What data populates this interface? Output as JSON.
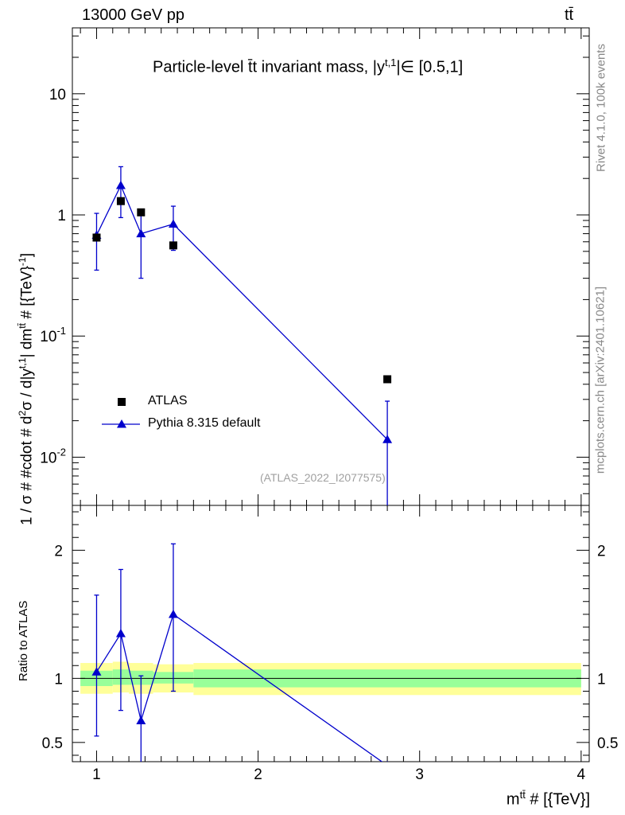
{
  "header": {
    "energy_label": "13000 GeV pp",
    "process_label": "tt̄"
  },
  "side_labels": {
    "rivet": "Rivet 4.1.0,  100k events",
    "mcplots": "mcplots.cern.ch [arXiv:2401.10621]"
  },
  "reference_label": "(ATLAS_2022_I2077575)",
  "colors": {
    "mc": "#0000cc",
    "data": "#000000",
    "band_inner": "#99ff99",
    "band_outer": "#ffff99",
    "side_text": "#888888"
  },
  "chart_data": [
    {
      "type": "scatter",
      "panel": "main",
      "title": "Particle-level t̄t invariant mass, |y^{t,1}| ∈ [0.5,1]",
      "title_parts": {
        "pre": "Particle-level t̄t invariant mass, |y",
        "sup": "t,1",
        "post": "|∈ [0.5,1]"
      },
      "ylabel": "1 / σ # #cdot # d²σ / d|y^{t,1}| dm^{tt̄} # [{TeV}^{-1}]",
      "ylabel_parts": [
        {
          "t": "1 / σ # #cdot # d",
          "s": false
        },
        {
          "t": "2",
          "s": true
        },
        {
          "t": "σ / d|y",
          "s": false
        },
        {
          "t": "t,1",
          "s": true
        },
        {
          "t": "| dm",
          "s": false
        },
        {
          "t": "tt̄",
          "s": true
        },
        {
          "t": " # [{TeV}",
          "s": false
        },
        {
          "t": "-1",
          "s": true
        },
        {
          "t": "]",
          "s": false
        }
      ],
      "yscale": "log",
      "xlim": [
        0.85,
        4.05
      ],
      "ylim": [
        0.004,
        35
      ],
      "xticks": [
        1,
        2,
        3,
        4
      ],
      "yticks": [
        {
          "value": 0.01,
          "base": "10",
          "exp": "-2"
        },
        {
          "value": 0.1,
          "base": "10",
          "exp": "-1"
        },
        {
          "value": 1,
          "base": "1",
          "exp": ""
        },
        {
          "value": 10,
          "base": "10",
          "exp": ""
        }
      ],
      "legend": {
        "position": "lower-left",
        "entries": [
          "ATLAS",
          "Pythia 8.315 default"
        ]
      },
      "series": [
        {
          "name": "ATLAS",
          "style": "black-square-markers",
          "x": [
            1.0,
            1.15,
            1.275,
            1.475,
            2.8
          ],
          "y": [
            0.65,
            1.3,
            1.05,
            0.56,
            0.044
          ]
        },
        {
          "name": "Pythia 8.315 default",
          "style": "blue-triangle-line",
          "x": [
            1.0,
            1.15,
            1.275,
            1.475,
            2.8
          ],
          "y": [
            0.68,
            1.75,
            0.7,
            0.84,
            0.014
          ],
          "yerr_low": [
            0.33,
            0.8,
            0.4,
            0.33,
            0.0105
          ],
          "yerr_high": [
            0.35,
            0.75,
            0.35,
            0.34,
            0.015
          ]
        }
      ]
    },
    {
      "type": "line",
      "panel": "ratio",
      "ylabel": "Ratio to ATLAS",
      "xlabel": "m^{tt̄} # [{TeV}]",
      "xlabel_parts": {
        "pre": "m",
        "sup": "tt̄",
        "post": " # [{TeV}]"
      },
      "xlim": [
        0.85,
        4.05
      ],
      "ylim": [
        0.35,
        2.35
      ],
      "xticks": [
        1,
        2,
        3,
        4
      ],
      "yticks": [
        0.5,
        1,
        2
      ],
      "ytick_labels": [
        "0.5",
        "1",
        "2"
      ],
      "reference_line": 1.0,
      "bands": {
        "edges": [
          0.9,
          1.1,
          1.2,
          1.35,
          1.6,
          4.0
        ],
        "inner": [
          [
            0.94,
            1.06
          ],
          [
            0.95,
            1.07
          ],
          [
            0.95,
            1.06
          ],
          [
            0.96,
            1.05
          ],
          [
            0.93,
            1.07
          ]
        ],
        "outer": [
          [
            0.88,
            1.12
          ],
          [
            0.89,
            1.13
          ],
          [
            0.88,
            1.12
          ],
          [
            0.89,
            1.11
          ],
          [
            0.87,
            1.12
          ]
        ]
      },
      "series": [
        {
          "name": "Pythia 8.315 default",
          "x": [
            1.0,
            1.15,
            1.275,
            1.475,
            2.8
          ],
          "y": [
            1.05,
            1.35,
            0.67,
            1.5,
            0.32
          ],
          "yerr_low": [
            0.5,
            0.6,
            0.33,
            0.6,
            0.0
          ],
          "yerr_high": [
            0.6,
            0.5,
            0.35,
            0.55,
            0.0
          ]
        }
      ]
    }
  ]
}
